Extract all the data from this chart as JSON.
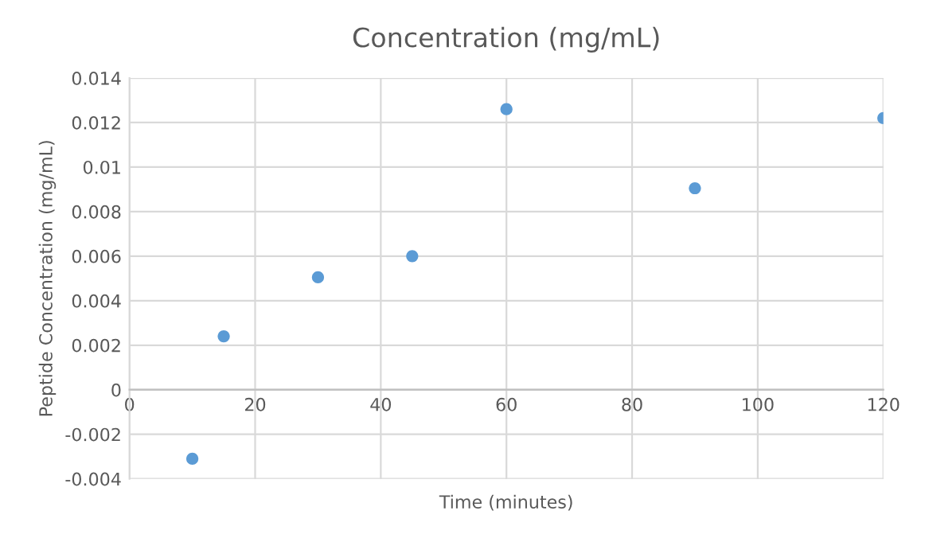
{
  "chart_data": {
    "type": "scatter",
    "title": "Concentration (mg/mL)",
    "xlabel": "Time (minutes)",
    "ylabel": "Peptide Concentration (mg/mL)",
    "x": [
      10,
      15,
      30,
      45,
      60,
      90,
      120
    ],
    "series": [
      {
        "color": "#5b9bd5",
        "values": [
          -0.0031,
          0.0024,
          0.00505,
          0.006,
          0.0126,
          0.00905,
          0.0122
        ]
      }
    ],
    "xlim": [
      0,
      120
    ],
    "xticks": [
      0,
      20,
      40,
      60,
      80,
      100,
      120
    ],
    "ylim": [
      -0.004,
      0.014
    ],
    "yticks": [
      -0.004,
      -0.002,
      0,
      0.002,
      0.004,
      0.006,
      0.008,
      0.01,
      0.012,
      0.014
    ],
    "grid": true,
    "marker": "circle",
    "legend": false
  }
}
